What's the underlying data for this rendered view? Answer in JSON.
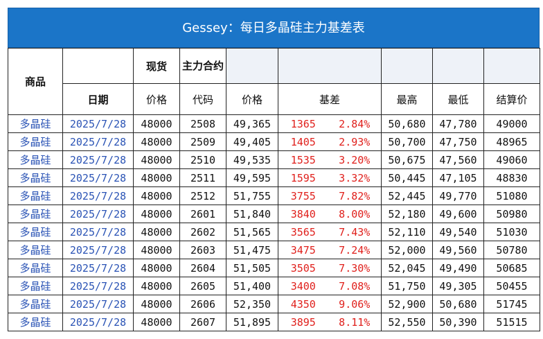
{
  "title": "Gessey：每日多晶硅主力基差表",
  "header": {
    "product": "商品",
    "spot": "现货",
    "main_contract": "主力合约",
    "date": "日期",
    "spot_price": "价格",
    "code": "代码",
    "price": "价格",
    "basis": "基差",
    "high": "最高",
    "low": "最低",
    "settle": "结算价"
  },
  "rows": [
    {
      "product": "多晶硅",
      "date": "2025/7/28",
      "spot": "48000",
      "code": "2508",
      "price": "49,365",
      "basis": "1365",
      "pct": "2.84%",
      "high": "50,680",
      "low": "47,780",
      "settle": "49000"
    },
    {
      "product": "多晶硅",
      "date": "2025/7/28",
      "spot": "48000",
      "code": "2509",
      "price": "49,405",
      "basis": "1405",
      "pct": "2.93%",
      "high": "50,700",
      "low": "47,750",
      "settle": "48965"
    },
    {
      "product": "多晶硅",
      "date": "2025/7/28",
      "spot": "48000",
      "code": "2510",
      "price": "49,535",
      "basis": "1535",
      "pct": "3.20%",
      "high": "50,675",
      "low": "47,560",
      "settle": "49060"
    },
    {
      "product": "多晶硅",
      "date": "2025/7/28",
      "spot": "48000",
      "code": "2511",
      "price": "49,595",
      "basis": "1595",
      "pct": "3.32%",
      "high": "50,445",
      "low": "47,105",
      "settle": "48830"
    },
    {
      "product": "多晶硅",
      "date": "2025/7/28",
      "spot": "48000",
      "code": "2512",
      "price": "51,755",
      "basis": "3755",
      "pct": "7.82%",
      "high": "52,445",
      "low": "49,770",
      "settle": "51080"
    },
    {
      "product": "多晶硅",
      "date": "2025/7/28",
      "spot": "48000",
      "code": "2601",
      "price": "51,840",
      "basis": "3840",
      "pct": "8.00%",
      "high": "52,180",
      "low": "49,600",
      "settle": "50980"
    },
    {
      "product": "多晶硅",
      "date": "2025/7/28",
      "spot": "48000",
      "code": "2602",
      "price": "51,565",
      "basis": "3565",
      "pct": "7.43%",
      "high": "52,110",
      "low": "49,540",
      "settle": "51030"
    },
    {
      "product": "多晶硅",
      "date": "2025/7/28",
      "spot": "48000",
      "code": "2603",
      "price": "51,475",
      "basis": "3475",
      "pct": "7.24%",
      "high": "52,000",
      "low": "49,560",
      "settle": "50780"
    },
    {
      "product": "多晶硅",
      "date": "2025/7/28",
      "spot": "48000",
      "code": "2604",
      "price": "51,505",
      "basis": "3505",
      "pct": "7.30%",
      "high": "52,045",
      "low": "49,490",
      "settle": "50685"
    },
    {
      "product": "多晶硅",
      "date": "2025/7/28",
      "spot": "48000",
      "code": "2605",
      "price": "51,400",
      "basis": "3400",
      "pct": "7.08%",
      "high": "51,750",
      "low": "49,305",
      "settle": "50455"
    },
    {
      "product": "多晶硅",
      "date": "2025/7/28",
      "spot": "48000",
      "code": "2606",
      "price": "52,350",
      "basis": "4350",
      "pct": "9.06%",
      "high": "52,900",
      "low": "50,680",
      "settle": "51745"
    },
    {
      "product": "多晶硅",
      "date": "2025/7/28",
      "spot": "48000",
      "code": "2607",
      "price": "51,895",
      "basis": "3895",
      "pct": "8.11%",
      "high": "52,550",
      "low": "50,390",
      "settle": "51515"
    }
  ],
  "colors": {
    "title_bg": "#1b75c8",
    "product_text": "#2a53b5",
    "basis_text": "#e0201c",
    "header_shade": "#eef2f8"
  }
}
